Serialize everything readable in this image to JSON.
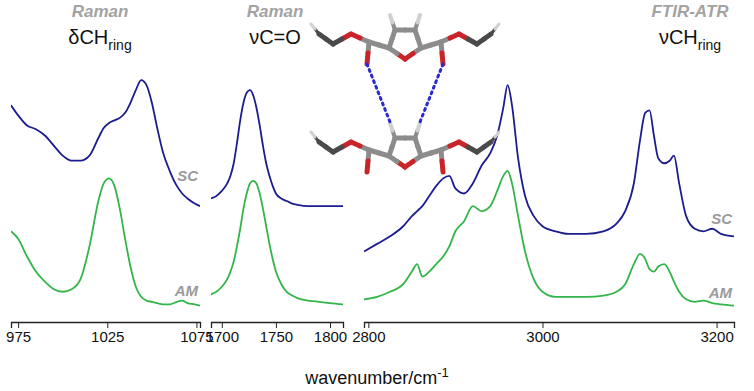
{
  "chart_data": [
    {
      "type": "line",
      "title": "Raman",
      "subtitle": [
        {
          "text": "δCH"
        },
        {
          "text": "ring",
          "sub": true
        }
      ],
      "tick_labels": "x",
      "xlim": [
        971,
        1077
      ],
      "xticks": [
        975,
        1025,
        1075
      ],
      "ylim": [
        0,
        100
      ],
      "x": [
        971,
        975,
        980,
        985,
        990,
        995,
        1000,
        1005,
        1010,
        1015,
        1020,
        1023,
        1026,
        1029,
        1032,
        1035,
        1038,
        1041,
        1044,
        1047,
        1050,
        1053,
        1056,
        1060,
        1064,
        1067,
        1070,
        1074,
        1077
      ],
      "series": [
        {
          "name": "SC",
          "color": "#1c1c8f",
          "values": [
            86,
            82,
            78,
            76.5,
            74,
            70,
            66,
            64,
            64,
            66,
            73,
            77,
            79,
            80,
            81,
            83,
            87,
            92,
            96,
            94,
            87,
            77,
            68,
            60,
            54,
            51,
            49,
            47,
            46
          ]
        },
        {
          "name": "AM",
          "color": "#33b54a",
          "values": [
            36,
            33,
            26,
            20,
            16,
            13,
            12,
            13,
            17,
            30,
            48,
            55,
            57,
            54,
            45,
            33,
            22,
            14,
            10,
            8.5,
            8,
            7.5,
            7,
            7,
            8,
            8.5,
            7.5,
            7,
            6.5
          ]
        }
      ]
    },
    {
      "type": "line",
      "title": "Raman",
      "subtitle": [
        {
          "text": "νC=O"
        }
      ],
      "xlabel": [
        {
          "text": "wavenumber/cm"
        },
        {
          "text": "-1",
          "sup": true
        }
      ],
      "tick_labels": "x",
      "xlim": [
        1690,
        1812
      ],
      "xticks": [
        1700,
        1750,
        1800
      ],
      "ylim": [
        0,
        100
      ],
      "x": [
        1690,
        1695,
        1700,
        1705,
        1708,
        1711,
        1714,
        1717,
        1720,
        1723,
        1726,
        1729,
        1732,
        1735,
        1738,
        1741,
        1744,
        1747,
        1750,
        1755,
        1760,
        1765,
        1770,
        1780,
        1790,
        1800,
        1812
      ],
      "series": [
        {
          "color": "#1c1c8f",
          "values": [
            49,
            50,
            52,
            55,
            58,
            63,
            71,
            80,
            87,
            91,
            92,
            90,
            85,
            78,
            70,
            63,
            58,
            54,
            51,
            49,
            48,
            47,
            46.5,
            46,
            46,
            46,
            46
          ]
        },
        {
          "color": "#33b54a",
          "values": [
            11,
            12,
            14,
            17,
            20,
            24,
            30,
            37,
            45,
            51,
            55,
            56,
            55,
            51,
            45,
            38,
            31,
            25,
            20,
            15,
            12,
            10.5,
            9.5,
            8.5,
            8,
            7.5,
            7
          ]
        }
      ]
    },
    {
      "type": "line",
      "title": "FTIR-ATR",
      "subtitle": [
        {
          "text": "νCH"
        },
        {
          "text": "ring",
          "sub": true
        }
      ],
      "tick_labels": "x",
      "xlim": [
        2795,
        3220
      ],
      "xticks": [
        2800,
        3000,
        3200
      ],
      "ylim": [
        0,
        100
      ],
      "x": [
        2795,
        2810,
        2825,
        2840,
        2850,
        2856,
        2862,
        2870,
        2878,
        2886,
        2893,
        2900,
        2910,
        2920,
        2930,
        2940,
        2948,
        2955,
        2960,
        2965,
        2972,
        2980,
        2990,
        3000,
        3015,
        3030,
        3050,
        3070,
        3085,
        3095,
        3105,
        3112,
        3118,
        3123,
        3128,
        3133,
        3140,
        3146,
        3151,
        3157,
        3165,
        3175,
        3185,
        3195,
        3205,
        3220
      ],
      "series": [
        {
          "name": "SC",
          "color": "#1c1c8f",
          "values": [
            28,
            31,
            34,
            38,
            42,
            44,
            46,
            50,
            54,
            57,
            58,
            53,
            51,
            55,
            62,
            67,
            74,
            85,
            94,
            86,
            65,
            50,
            42,
            38,
            36,
            35,
            35,
            36,
            39,
            44,
            55,
            72,
            83,
            84,
            74,
            65,
            63,
            64,
            66,
            55,
            42,
            37,
            36,
            37,
            35,
            34
          ]
        },
        {
          "name": "AM",
          "color": "#33b54a",
          "values": [
            9,
            10,
            12,
            15,
            20,
            23,
            18,
            20,
            23,
            26,
            30,
            36,
            40,
            46,
            44,
            46,
            52,
            58,
            60,
            55,
            42,
            28,
            17,
            12,
            10,
            10,
            10,
            10.5,
            12,
            15,
            23,
            27,
            25,
            21,
            20,
            22,
            23,
            20,
            16,
            12,
            9,
            8,
            8.5,
            7.5,
            7,
            6.5
          ]
        }
      ]
    }
  ]
}
